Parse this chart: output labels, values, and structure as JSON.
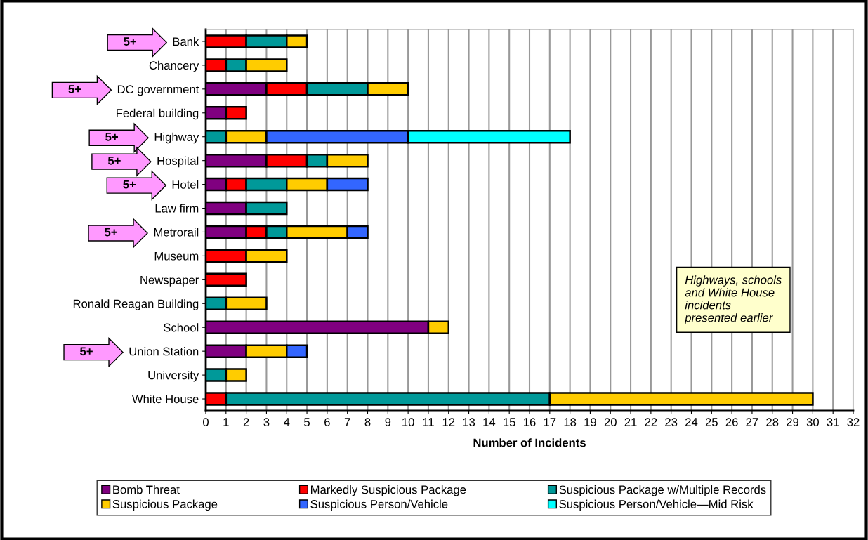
{
  "chart_data": {
    "type": "bar",
    "orientation": "horizontal",
    "stacked": true,
    "categories": [
      "Bank",
      "Chancery",
      "DC government",
      "Federal building",
      "Highway",
      "Hospital",
      "Hotel",
      "Law firm",
      "Metrorail",
      "Museum",
      "Newspaper",
      "Ronald Reagan Building",
      "School",
      "Union Station",
      "University",
      "White House"
    ],
    "series": [
      {
        "name": "Bomb Threat",
        "color": "#800080",
        "values": [
          null,
          null,
          3,
          1,
          null,
          3,
          1,
          2,
          2,
          null,
          null,
          null,
          11,
          2,
          null,
          null
        ]
      },
      {
        "name": "Markedly Suspicious Package",
        "color": "#ff0000",
        "values": [
          2,
          1,
          2,
          1,
          null,
          2,
          1,
          null,
          1,
          2,
          2,
          null,
          null,
          null,
          null,
          1
        ]
      },
      {
        "name": "Suspicious Package w/Multiple Records",
        "color": "#009999",
        "values": [
          2,
          1,
          3,
          null,
          1,
          1,
          2,
          2,
          1,
          null,
          null,
          1,
          null,
          null,
          1,
          16
        ]
      },
      {
        "name": "Suspicious Package",
        "color": "#ffcc00",
        "values": [
          1,
          2,
          2,
          null,
          2,
          2,
          2,
          null,
          3,
          2,
          null,
          2,
          1,
          2,
          1,
          13
        ]
      },
      {
        "name": "Suspicious Person/Vehicle",
        "color": "#3366ff",
        "values": [
          null,
          null,
          null,
          null,
          7,
          null,
          2,
          null,
          1,
          null,
          null,
          null,
          null,
          1,
          null,
          null
        ]
      },
      {
        "name": "Suspicious Person/Vehicle—Mid Risk",
        "color": "#00ffff",
        "values": [
          null,
          null,
          null,
          null,
          8,
          null,
          null,
          null,
          null,
          null,
          null,
          null,
          null,
          null,
          null,
          null
        ]
      }
    ],
    "xlabel": "Number of Incidents",
    "xlim": [
      0,
      32
    ],
    "xticks": [
      0,
      1,
      2,
      3,
      4,
      5,
      6,
      7,
      8,
      9,
      10,
      11,
      12,
      13,
      14,
      15,
      16,
      17,
      18,
      19,
      20,
      21,
      22,
      23,
      24,
      25,
      26,
      27,
      28,
      29,
      30,
      31,
      32
    ],
    "grid": "x",
    "legend": "bottom",
    "annotations": [
      "5+",
      "5+",
      "5+",
      "5+",
      "5+",
      "5+",
      "5+",
      "Highways, schools and White House incidents presented earlier"
    ]
  }
}
